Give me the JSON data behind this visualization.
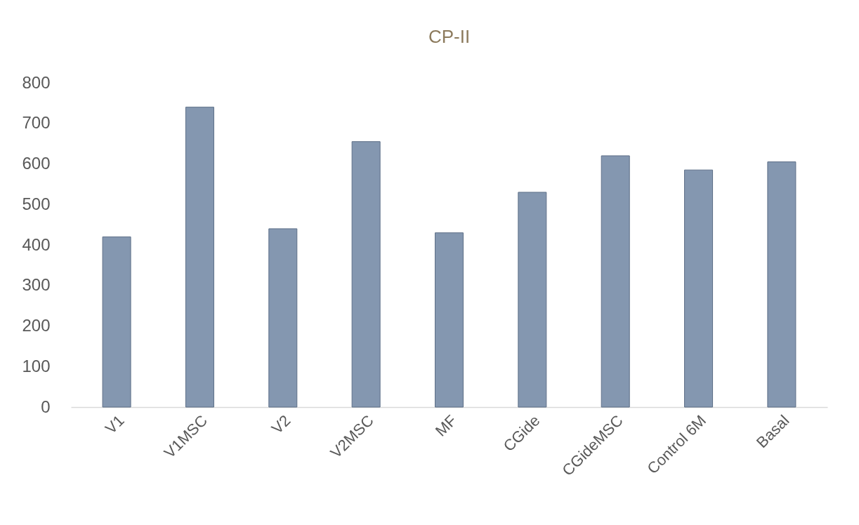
{
  "chart_data": {
    "type": "bar",
    "title": "CP-II",
    "categories": [
      "V1",
      "V1MSC",
      "V2",
      "V2MSC",
      "MF",
      "CGide",
      "CGideMSC",
      "Control 6M",
      "Basal"
    ],
    "values": [
      420,
      740,
      440,
      655,
      430,
      530,
      620,
      585,
      605
    ],
    "color": "#8497b0",
    "ylim": [
      0,
      800
    ],
    "yticks": [
      0,
      100,
      200,
      300,
      400,
      500,
      600,
      700,
      800
    ],
    "grid": false
  }
}
